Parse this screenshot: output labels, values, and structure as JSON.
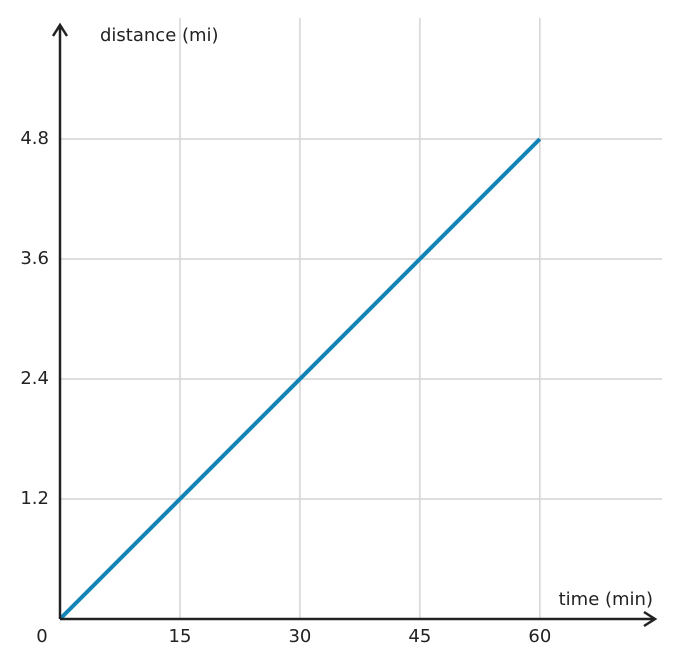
{
  "chart_data": {
    "type": "line",
    "x_label": "time (min)",
    "y_label": "distance (mi)",
    "x": [
      0,
      60
    ],
    "series": [
      {
        "color": "#1283b7",
        "values": [
          0,
          4.8
        ]
      }
    ],
    "xlim": [
      0,
      74.4
    ],
    "ylim": [
      0,
      5.94
    ],
    "xticks": [
      0,
      15,
      30,
      45,
      60
    ],
    "yticks": [
      1.2,
      2.4,
      3.6,
      4.8
    ],
    "grid": true
  }
}
